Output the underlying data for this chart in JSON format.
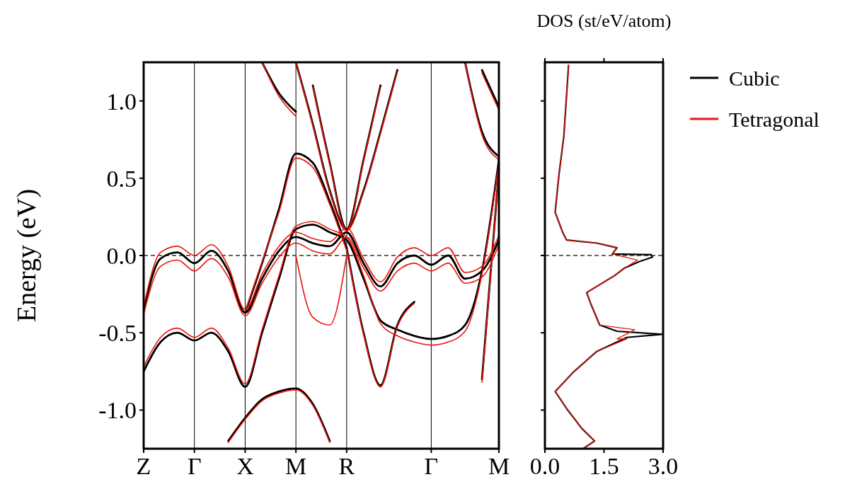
{
  "chart_data": [
    {
      "type": "line",
      "ylabel": "Energy (eV)",
      "ylim": [
        -1.25,
        1.25
      ],
      "categories": [
        "Z",
        null,
        null,
        "Γ",
        null,
        null,
        "X",
        null,
        null,
        "M",
        null,
        null,
        "R",
        null,
        null,
        null,
        null,
        "Γ",
        null,
        null,
        null,
        "M"
      ],
      "yticks": [
        {
          "value": -1,
          "label": "-1.0"
        },
        {
          "value": -0.5,
          "label": "-0.5"
        },
        {
          "value": 0,
          "label": "0.0"
        },
        {
          "value": 0.5,
          "label": "0.5"
        },
        {
          "value": 1,
          "label": "1.0"
        }
      ],
      "grid": "x",
      "ref_lines": [
        {
          "axis": "y",
          "value": 0,
          "line_style": "dashed",
          "color": "#333333"
        }
      ],
      "series": [
        {
          "color": "#000000",
          "values": [
            -0.35,
            -0.02,
            0.02,
            -0.05,
            0.03,
            -0.1,
            -0.37,
            -0.15,
            0.03,
            0.12,
            0.08,
            0.06,
            0.15,
            -0.05,
            -0.2,
            -0.05,
            0.0,
            -0.06,
            0.0,
            -0.15,
            -0.1,
            0.1
          ]
        },
        {
          "color": "#000000",
          "values": [
            -0.75,
            -0.56,
            -0.5,
            -0.55,
            -0.5,
            -0.62,
            -0.85,
            -0.5,
            -0.15,
            0.17,
            0.2,
            0.15,
            0.1,
            -0.15,
            -0.42,
            -0.48,
            -0.52,
            -0.54,
            -0.52,
            -0.45,
            -0.1,
            0.62
          ]
        },
        {
          "color": "#000000",
          "values": [
            null,
            null,
            null,
            null,
            null,
            -1.2,
            -1.05,
            -0.93,
            -0.88,
            -0.86,
            -0.96,
            -1.2,
            null,
            null,
            null,
            null,
            null,
            null,
            null,
            null,
            null,
            null
          ]
        },
        {
          "color": "#000000",
          "values": [
            null,
            null,
            null,
            null,
            null,
            null,
            null,
            null,
            null,
            1.25,
            0.85,
            0.42,
            0.17,
            0.42,
            0.8,
            1.2,
            null,
            null,
            null,
            null,
            null,
            null
          ]
        },
        {
          "color": "#000000",
          "values": [
            null,
            null,
            null,
            null,
            null,
            null,
            null,
            null,
            null,
            null,
            1.1,
            0.6,
            0.17,
            0.62,
            1.1,
            null,
            null,
            null,
            null,
            null,
            null,
            null
          ]
        },
        {
          "color": "#000000",
          "values": [
            null,
            null,
            null,
            null,
            null,
            null,
            -0.37,
            -0.05,
            0.3,
            0.66,
            0.6,
            0.35,
            0.05,
            null,
            null,
            null,
            null,
            null,
            null,
            null,
            null,
            null
          ]
        },
        {
          "color": "#000000",
          "values": [
            null,
            null,
            null,
            null,
            null,
            null,
            null,
            1.25,
            1.05,
            0.93,
            null,
            null,
            null,
            null,
            null,
            null,
            null,
            null,
            null,
            null,
            null,
            null
          ]
        },
        {
          "color": "#000000",
          "values": [
            null,
            null,
            null,
            null,
            null,
            null,
            null,
            null,
            null,
            null,
            null,
            null,
            null,
            null,
            null,
            null,
            null,
            null,
            null,
            1.25,
            0.8,
            0.64
          ]
        },
        {
          "color": "#000000",
          "values": [
            null,
            null,
            null,
            null,
            null,
            null,
            null,
            null,
            null,
            null,
            null,
            null,
            null,
            null,
            null,
            null,
            null,
            null,
            null,
            null,
            1.2,
            0.96
          ]
        },
        {
          "color": "#000000",
          "values": [
            null,
            null,
            null,
            null,
            null,
            null,
            null,
            null,
            null,
            null,
            null,
            null,
            0.05,
            -0.5,
            -0.84,
            -0.45,
            -0.3,
            null,
            null,
            null,
            null,
            null
          ]
        },
        {
          "color": "#000000",
          "values": [
            null,
            null,
            null,
            null,
            null,
            null,
            null,
            null,
            null,
            null,
            null,
            null,
            null,
            null,
            null,
            null,
            null,
            null,
            null,
            null,
            -0.8,
            0.55
          ]
        },
        {
          "color": "#e8160c",
          "values": [
            -0.33,
            0.02,
            0.06,
            0.0,
            0.07,
            -0.07,
            -0.35,
            -0.12,
            0.06,
            0.15,
            0.11,
            0.09,
            0.18,
            -0.02,
            -0.17,
            -0.01,
            0.05,
            0.0,
            0.05,
            -0.11,
            -0.07,
            0.13
          ]
        },
        {
          "color": "#e8160c",
          "values": [
            -0.38,
            -0.07,
            -0.03,
            -0.1,
            -0.02,
            -0.14,
            -0.39,
            -0.18,
            -0.01,
            0.08,
            0.03,
            0.01,
            0.12,
            -0.08,
            -0.23,
            -0.1,
            -0.05,
            -0.1,
            -0.05,
            -0.18,
            -0.14,
            0.07
          ]
        },
        {
          "color": "#e8160c",
          "values": [
            -0.72,
            -0.53,
            -0.47,
            -0.53,
            -0.47,
            -0.6,
            -0.83,
            -0.48,
            -0.13,
            0.19,
            0.22,
            0.17,
            0.12,
            -0.13,
            -0.44,
            -0.52,
            -0.56,
            -0.58,
            -0.56,
            -0.49,
            -0.12,
            0.6
          ]
        },
        {
          "color": "#e8160c",
          "values": [
            null,
            null,
            null,
            null,
            null,
            -1.21,
            -1.06,
            -0.94,
            -0.89,
            -0.87,
            -0.97,
            -1.21,
            null,
            null,
            null,
            null,
            null,
            null,
            null,
            null,
            null,
            null
          ]
        },
        {
          "color": "#e8160c",
          "values": [
            null,
            null,
            null,
            null,
            null,
            null,
            null,
            null,
            null,
            1.25,
            0.84,
            0.41,
            0.16,
            0.41,
            0.79,
            1.19,
            null,
            null,
            null,
            null,
            null,
            null
          ]
        },
        {
          "color": "#e8160c",
          "values": [
            null,
            null,
            null,
            null,
            null,
            null,
            null,
            null,
            null,
            null,
            1.09,
            0.59,
            0.16,
            0.61,
            1.09,
            null,
            null,
            null,
            null,
            null,
            null,
            null
          ]
        },
        {
          "color": "#e8160c",
          "values": [
            null,
            null,
            null,
            null,
            null,
            null,
            -0.36,
            -0.04,
            0.28,
            0.63,
            0.57,
            0.33,
            0.03,
            null,
            null,
            null,
            null,
            null,
            null,
            null,
            null,
            null
          ]
        },
        {
          "color": "#e8160c",
          "values": [
            null,
            null,
            null,
            null,
            null,
            null,
            null,
            1.25,
            1.03,
            0.9,
            null,
            null,
            null,
            null,
            null,
            null,
            null,
            null,
            null,
            null,
            null,
            null
          ]
        },
        {
          "color": "#e8160c",
          "values": [
            null,
            null,
            null,
            null,
            null,
            null,
            null,
            null,
            null,
            null,
            null,
            null,
            null,
            null,
            null,
            null,
            null,
            null,
            null,
            1.25,
            0.78,
            0.62
          ]
        },
        {
          "color": "#e8160c",
          "values": [
            null,
            null,
            null,
            null,
            null,
            null,
            null,
            null,
            null,
            null,
            null,
            null,
            null,
            null,
            null,
            null,
            null,
            null,
            null,
            null,
            1.18,
            0.94
          ]
        },
        {
          "color": "#e8160c",
          "values": [
            null,
            null,
            null,
            null,
            null,
            null,
            null,
            null,
            null,
            null,
            null,
            null,
            0.04,
            -0.51,
            -0.85,
            -0.46,
            -0.31,
            null,
            null,
            null,
            null,
            null
          ]
        },
        {
          "color": "#e8160c",
          "values": [
            null,
            null,
            null,
            null,
            null,
            null,
            null,
            null,
            null,
            0.0,
            -0.4,
            -0.45,
            0.0,
            null,
            null,
            null,
            null,
            null,
            null,
            null,
            null,
            null
          ]
        },
        {
          "color": "#e8160c",
          "values": [
            null,
            null,
            null,
            null,
            null,
            null,
            null,
            null,
            null,
            null,
            null,
            null,
            null,
            null,
            null,
            null,
            null,
            null,
            null,
            null,
            -0.82,
            0.55
          ]
        }
      ]
    },
    {
      "type": "line",
      "xlabel": "DOS (st/eV/atom)",
      "xlim": [
        0,
        3
      ],
      "ylim": [
        -1.25,
        1.25
      ],
      "xticks": [
        {
          "value": 0,
          "label": "0.0"
        },
        {
          "value": 1.5,
          "label": "1.5"
        },
        {
          "value": 3,
          "label": "3.0"
        }
      ],
      "yticks": [
        {
          "value": -1,
          "label": null
        },
        {
          "value": -0.5,
          "label": null
        },
        {
          "value": 0,
          "label": null
        },
        {
          "value": 0.5,
          "label": null
        },
        {
          "value": 1,
          "label": null
        }
      ],
      "tick_labels": "x",
      "legend": "right",
      "ref_lines": [
        {
          "axis": "y",
          "value": 0,
          "line_style": "dashed",
          "color": "#333333"
        }
      ],
      "series": [
        {
          "name": "Cubic",
          "color": "#000000",
          "x": [
            0.6,
            0.48,
            0.36,
            0.26,
            0.45,
            0.55,
            1.32,
            1.83,
            1.71,
            2.7,
            2.73,
            2.39,
            2.03,
            1.77,
            1.06,
            1.16,
            1.26,
            1.39,
            1.83,
            2.98,
            2.08,
            1.32,
            0.74,
            0.26,
            0.55,
            0.94,
            1.26,
            0.97
          ],
          "values": [
            1.23,
            0.77,
            0.53,
            0.28,
            0.15,
            0.1,
            0.08,
            0.05,
            0.01,
            0.005,
            -0.01,
            -0.04,
            -0.08,
            -0.13,
            -0.24,
            -0.31,
            -0.37,
            -0.45,
            -0.49,
            -0.51,
            -0.53,
            -0.62,
            -0.75,
            -0.88,
            -0.99,
            -1.12,
            -1.2,
            -1.25
          ]
        },
        {
          "name": "Tetragonal",
          "color": "#e8160c",
          "x": [
            0.6,
            0.48,
            0.36,
            0.26,
            0.45,
            0.55,
            1.32,
            1.83,
            1.71,
            2.35,
            2.03,
            1.77,
            1.06,
            1.16,
            1.26,
            1.39,
            2.28,
            1.83,
            2.08,
            1.32,
            0.74,
            0.26,
            0.55,
            0.94,
            1.26,
            0.97
          ],
          "values": [
            1.23,
            0.77,
            0.53,
            0.28,
            0.15,
            0.1,
            0.08,
            0.05,
            0.01,
            -0.03,
            -0.08,
            -0.13,
            -0.24,
            -0.31,
            -0.37,
            -0.45,
            -0.48,
            -0.54,
            -0.54,
            -0.62,
            -0.75,
            -0.88,
            -0.99,
            -1.12,
            -1.2,
            -1.25
          ]
        }
      ]
    }
  ]
}
